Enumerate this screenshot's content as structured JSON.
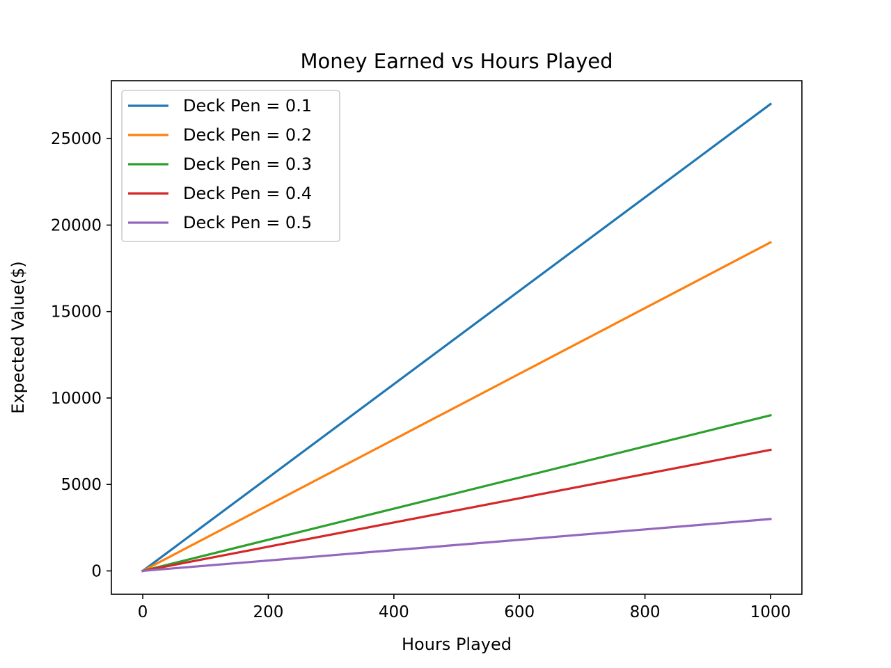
{
  "chart_data": {
    "type": "line",
    "title": "Money Earned vs Hours Played",
    "xlabel": "Hours Played",
    "ylabel": "Expected Value($)",
    "x": [
      0,
      1000
    ],
    "xlim": [
      -50,
      1050
    ],
    "ylim": [
      -1350,
      28350
    ],
    "xticks": [
      0,
      200,
      400,
      600,
      800,
      1000
    ],
    "yticks": [
      0,
      5000,
      10000,
      15000,
      20000,
      25000
    ],
    "grid": false,
    "legend_position": "top-left",
    "series": [
      {
        "name": "Deck Pen = 0.1",
        "color": "#1f77b4",
        "values": [
          0,
          27000
        ]
      },
      {
        "name": "Deck Pen = 0.2",
        "color": "#ff7f0e",
        "values": [
          0,
          19000
        ]
      },
      {
        "name": "Deck Pen = 0.3",
        "color": "#2ca02c",
        "values": [
          0,
          9000
        ]
      },
      {
        "name": "Deck Pen = 0.4",
        "color": "#d62728",
        "values": [
          0,
          7000
        ]
      },
      {
        "name": "Deck Pen = 0.5",
        "color": "#9467bd",
        "values": [
          0,
          3000
        ]
      }
    ]
  }
}
